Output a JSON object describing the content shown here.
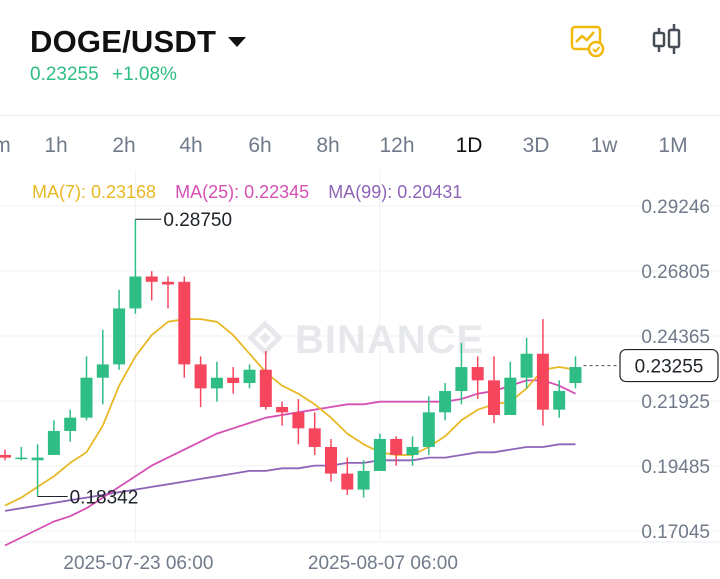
{
  "header": {
    "pair": "DOGE/USDT",
    "price": "0.23255",
    "change": "+1.08%",
    "icons": [
      "chart-settings-icon",
      "candlestick-icon",
      "chevron-down-icon"
    ]
  },
  "timeframes": {
    "tabs": [
      "m",
      "1h",
      "2h",
      "4h",
      "6h",
      "8h",
      "12h",
      "1D",
      "3D",
      "1w",
      "1M"
    ],
    "active": "1D"
  },
  "indicators": {
    "ma7": "MA(7): 0.23168",
    "ma25": "MA(25): 0.22345",
    "ma99": "MA(99): 0.20431"
  },
  "colors": {
    "up": "#2ebd85",
    "down": "#f6465d",
    "ma7": "#e8b825",
    "ma25": "#d64fb4",
    "ma99": "#8e64b8",
    "accent": "#f0b90b"
  },
  "watermark": "BINANCE",
  "chart_data": {
    "type": "candlestick",
    "y_ticks": [
      "0.29246",
      "0.26805",
      "0.24365",
      "0.21925",
      "0.19485",
      "0.17045"
    ],
    "x_ticks": [
      {
        "label": "2025-07-23 06:00",
        "index": 8
      },
      {
        "label": "2025-08-07 06:00",
        "index": 23
      }
    ],
    "ylim": [
      0.17045,
      0.29246
    ],
    "current_price": "0.23255",
    "annotations": [
      {
        "label": "0.28750",
        "index": 8,
        "price": 0.2875
      },
      {
        "label": "0.18342",
        "index": 2,
        "price": 0.18342
      }
    ],
    "candles": [
      [
        0.199,
        0.198,
        0.201,
        0.197
      ],
      [
        0.198,
        0.198,
        0.202,
        0.197
      ],
      [
        0.197,
        0.198,
        0.203,
        0.1834
      ],
      [
        0.199,
        0.208,
        0.212,
        0.199
      ],
      [
        0.208,
        0.213,
        0.216,
        0.204
      ],
      [
        0.213,
        0.228,
        0.236,
        0.212
      ],
      [
        0.228,
        0.233,
        0.246,
        0.218
      ],
      [
        0.233,
        0.254,
        0.261,
        0.231
      ],
      [
        0.254,
        0.266,
        0.2875,
        0.252
      ],
      [
        0.266,
        0.264,
        0.268,
        0.257
      ],
      [
        0.264,
        0.263,
        0.266,
        0.254
      ],
      [
        0.264,
        0.233,
        0.266,
        0.228
      ],
      [
        0.233,
        0.224,
        0.236,
        0.217
      ],
      [
        0.224,
        0.228,
        0.234,
        0.219
      ],
      [
        0.228,
        0.226,
        0.232,
        0.222
      ],
      [
        0.226,
        0.231,
        0.233,
        0.224
      ],
      [
        0.231,
        0.217,
        0.238,
        0.216
      ],
      [
        0.217,
        0.215,
        0.219,
        0.21
      ],
      [
        0.215,
        0.209,
        0.22,
        0.203
      ],
      [
        0.209,
        0.202,
        0.215,
        0.199
      ],
      [
        0.202,
        0.192,
        0.205,
        0.189
      ],
      [
        0.192,
        0.186,
        0.198,
        0.184
      ],
      [
        0.186,
        0.193,
        0.197,
        0.183
      ],
      [
        0.193,
        0.205,
        0.207,
        0.194
      ],
      [
        0.205,
        0.199,
        0.206,
        0.195
      ],
      [
        0.199,
        0.202,
        0.206,
        0.195
      ],
      [
        0.202,
        0.215,
        0.221,
        0.199
      ],
      [
        0.215,
        0.223,
        0.226,
        0.212
      ],
      [
        0.223,
        0.232,
        0.241,
        0.218
      ],
      [
        0.232,
        0.227,
        0.236,
        0.22
      ],
      [
        0.227,
        0.214,
        0.236,
        0.211
      ],
      [
        0.214,
        0.228,
        0.234,
        0.216
      ],
      [
        0.228,
        0.237,
        0.243,
        0.224
      ],
      [
        0.237,
        0.216,
        0.25,
        0.21
      ],
      [
        0.216,
        0.223,
        0.227,
        0.213
      ],
      [
        0.226,
        0.232,
        0.236,
        0.224
      ]
    ],
    "ma7": [
      0.18,
      0.183,
      0.187,
      0.191,
      0.196,
      0.2,
      0.21,
      0.225,
      0.236,
      0.244,
      0.249,
      0.25,
      0.25,
      0.249,
      0.244,
      0.237,
      0.23,
      0.225,
      0.222,
      0.218,
      0.213,
      0.207,
      0.203,
      0.2,
      0.199,
      0.199,
      0.202,
      0.206,
      0.212,
      0.216,
      0.218,
      0.219,
      0.224,
      0.231,
      0.232,
      0.231
    ],
    "ma25": [
      0.165,
      0.168,
      0.171,
      0.174,
      0.176,
      0.179,
      0.183,
      0.187,
      0.191,
      0.195,
      0.198,
      0.201,
      0.204,
      0.207,
      0.209,
      0.211,
      0.213,
      0.214,
      0.215,
      0.216,
      0.217,
      0.218,
      0.218,
      0.219,
      0.219,
      0.219,
      0.219,
      0.219,
      0.22,
      0.222,
      0.223,
      0.225,
      0.227,
      0.227,
      0.225,
      0.222
    ],
    "ma99": [
      0.178,
      0.179,
      0.18,
      0.181,
      0.182,
      0.183,
      0.184,
      0.185,
      0.186,
      0.187,
      0.188,
      0.189,
      0.19,
      0.191,
      0.192,
      0.193,
      0.193,
      0.194,
      0.194,
      0.195,
      0.195,
      0.196,
      0.196,
      0.197,
      0.197,
      0.197,
      0.198,
      0.198,
      0.199,
      0.2,
      0.2,
      0.201,
      0.202,
      0.202,
      0.203,
      0.203
    ]
  }
}
